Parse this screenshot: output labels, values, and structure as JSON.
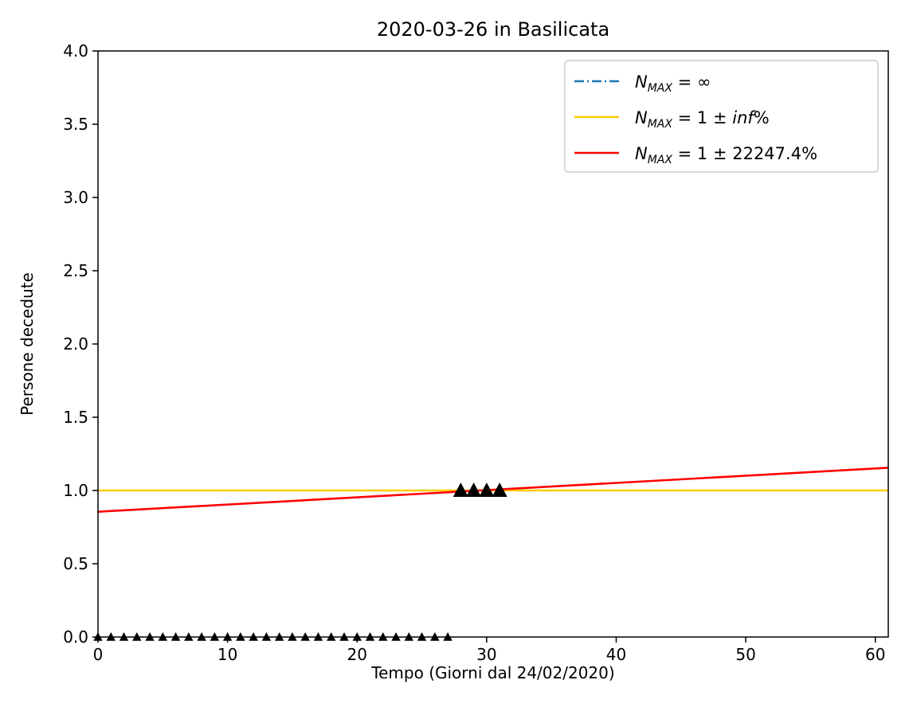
{
  "chart_data": {
    "type": "line",
    "title": "2020-03-26 in Basilicata",
    "xlabel": "Tempo (Giorni dal 24/02/2020)",
    "ylabel": "Persone decedute",
    "xlim": [
      0,
      61
    ],
    "ylim": [
      0,
      4.0
    ],
    "xticks": [
      0,
      10,
      20,
      30,
      40,
      50,
      60
    ],
    "yticks": [
      0.0,
      0.5,
      1.0,
      1.5,
      2.0,
      2.5,
      3.0,
      3.5,
      4.0
    ],
    "grid": false,
    "legend_position": "top-right",
    "series": [
      {
        "name": "N_MAX = ∞",
        "legend": {
          "symbol": "N",
          "sub": "MAX",
          "rest": " = ∞"
        },
        "kind": "line",
        "style": "dashdot",
        "color": "#1f77b4",
        "x": [],
        "y": []
      },
      {
        "name": "N_MAX = 1 ± inf%",
        "legend": {
          "symbol": "N",
          "sub": "MAX",
          "rest": " = 1 ± ",
          "italic": "inf",
          "tail": "%"
        },
        "kind": "line",
        "style": "solid",
        "color": "#ffcc00",
        "x": [
          0,
          61
        ],
        "y": [
          1.0,
          1.0
        ]
      },
      {
        "name": "N_MAX = 1 ± 22247.4%",
        "legend": {
          "symbol": "N",
          "sub": "MAX",
          "rest": " = 1 ± 22247.4%"
        },
        "kind": "line",
        "style": "solid",
        "color": "#ff0000",
        "x": [
          0,
          61
        ],
        "y": [
          0.855,
          1.155
        ]
      },
      {
        "name": "",
        "kind": "scatter",
        "marker": "triangle",
        "color": "#000000",
        "x": [
          0,
          1,
          2,
          3,
          4,
          5,
          6,
          7,
          8,
          9,
          10,
          11,
          12,
          13,
          14,
          15,
          16,
          17,
          18,
          19,
          20,
          21,
          22,
          23,
          24,
          25,
          26,
          27
        ],
        "y": [
          0,
          0,
          0,
          0,
          0,
          0,
          0,
          0,
          0,
          0,
          0,
          0,
          0,
          0,
          0,
          0,
          0,
          0,
          0,
          0,
          0,
          0,
          0,
          0,
          0,
          0,
          0,
          0
        ]
      },
      {
        "name": "",
        "kind": "scatter",
        "marker": "triangle-large",
        "color": "#000000",
        "x": [
          28,
          29,
          30,
          31
        ],
        "y": [
          1,
          1,
          1,
          1
        ]
      }
    ]
  }
}
